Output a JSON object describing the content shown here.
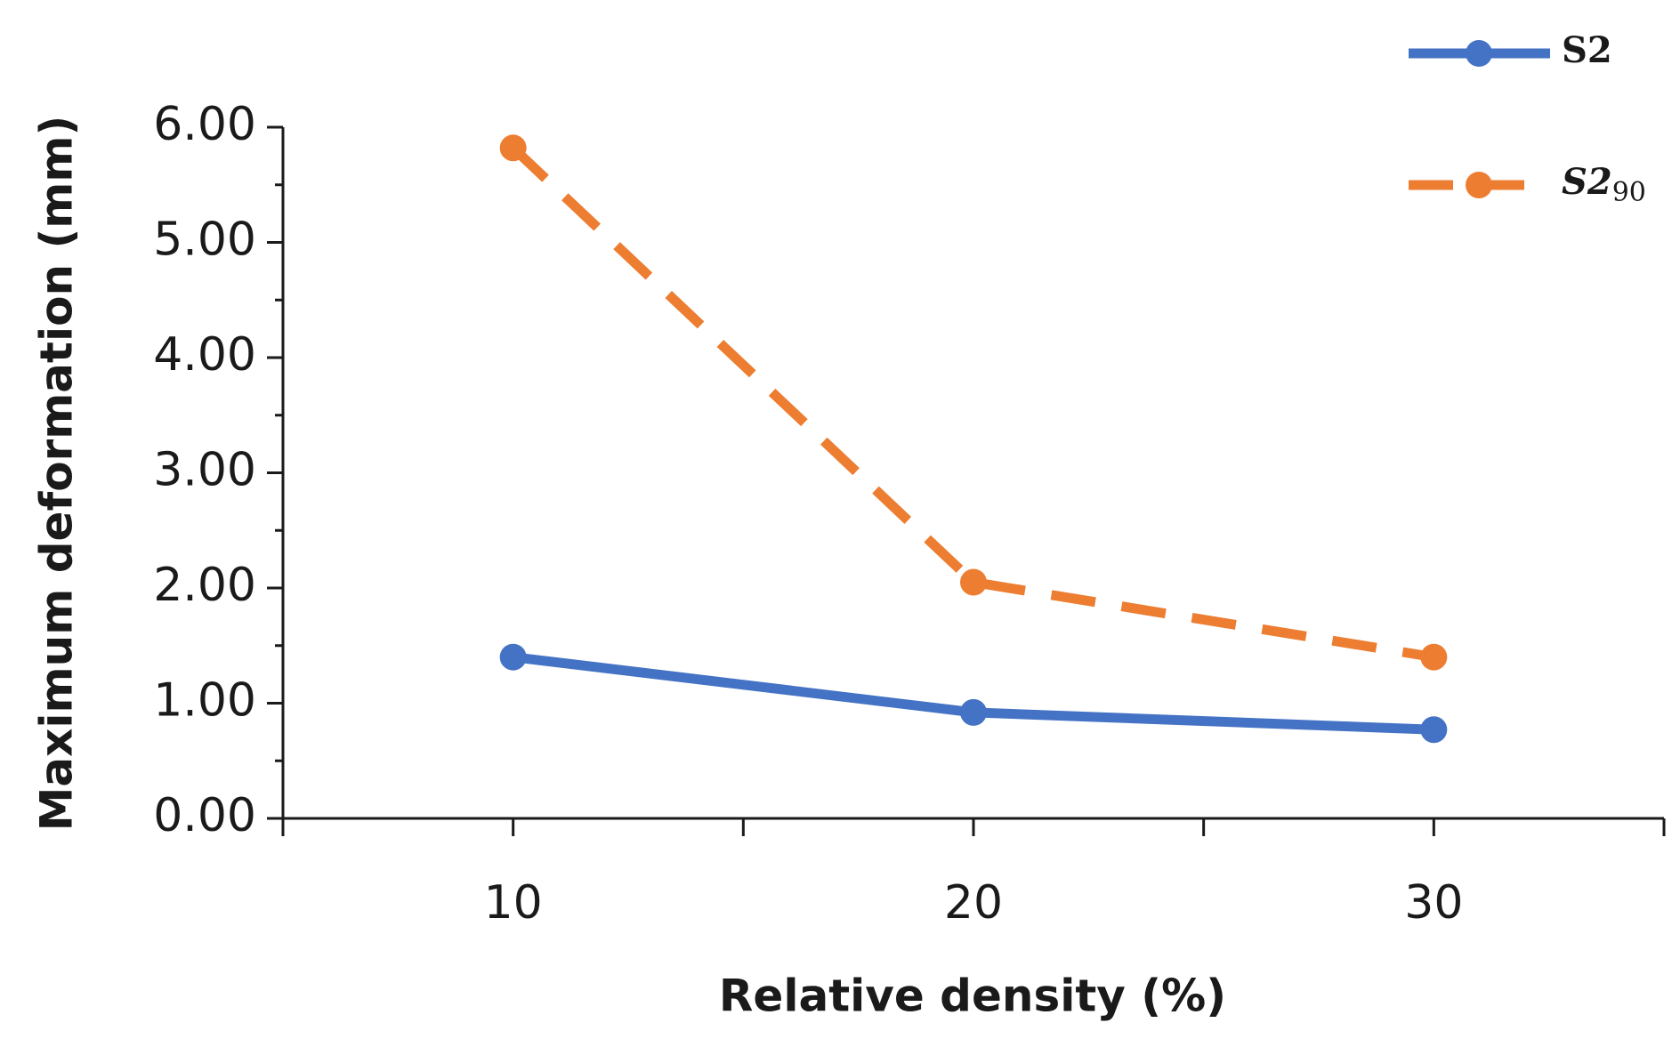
{
  "chart_data": {
    "type": "line",
    "x_label": "Relative density (%)",
    "y_label": "Maximum deformation (mm)",
    "xlim": [
      5,
      35
    ],
    "xticks": [
      10,
      20,
      30
    ],
    "xminor_ticks": [
      5,
      15,
      25,
      35
    ],
    "ylim": [
      0,
      6
    ],
    "yticks": [
      {
        "value": 0,
        "label": "0.00"
      },
      {
        "value": 1,
        "label": "1.00"
      },
      {
        "value": 2,
        "label": "2.00"
      },
      {
        "value": 3,
        "label": "3.00"
      },
      {
        "value": 4,
        "label": "4.00"
      },
      {
        "value": 5,
        "label": "5.00"
      },
      {
        "value": 6,
        "label": "6.00"
      }
    ],
    "yminor_ticks": [
      0.5,
      1.5,
      2.5,
      3.5,
      4.5,
      5.5
    ],
    "x": [
      10,
      20,
      30
    ],
    "series": [
      {
        "name": "S2",
        "color": "#4472c4",
        "dash": false,
        "values": [
          1.4,
          0.92,
          0.77
        ]
      },
      {
        "name": "S2",
        "subscript": "90",
        "color": "#ed7d31",
        "dash": true,
        "values": [
          5.82,
          2.05,
          1.4
        ]
      }
    ]
  }
}
